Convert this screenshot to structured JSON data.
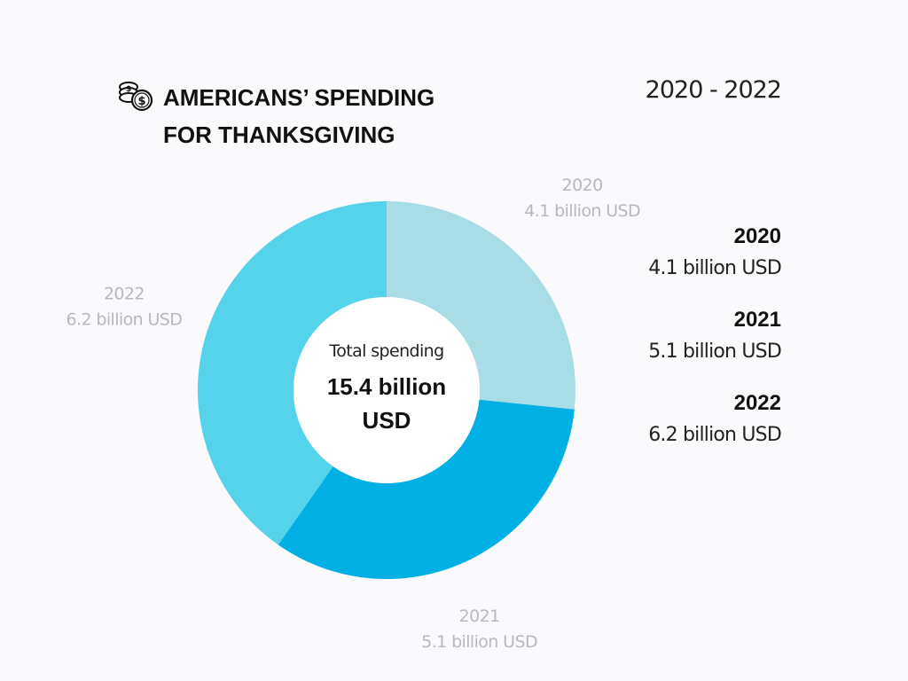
{
  "header": {
    "title_line1": "AMERICANS’ SPENDING",
    "title_line2": "FOR THANKSGIVING",
    "period": "2020 - 2022",
    "icon": "coins-icon"
  },
  "center": {
    "caption": "Total spending",
    "total_line1": "15.4 billion",
    "total_line2": "USD"
  },
  "legend": [
    {
      "year": "2020",
      "value": "4.1 billion USD"
    },
    {
      "year": "2021",
      "value": "5.1 billion USD"
    },
    {
      "year": "2022",
      "value": "6.2 billion USD"
    }
  ],
  "chart_data": {
    "type": "pie",
    "title": "AMERICANS’ SPENDING FOR THANKSGIVING",
    "subtitle": "2020 - 2022",
    "unit": "billion USD",
    "donut": true,
    "categories": [
      "2020",
      "2021",
      "2022"
    ],
    "values": [
      4.1,
      5.1,
      6.2
    ],
    "value_labels": [
      "4.1 billion USD",
      "5.1 billion USD",
      "6.2 billion USD"
    ],
    "colors": [
      "#a8dde6",
      "#00afe3",
      "#55d3ea"
    ],
    "total": 15.4,
    "legend_position": "right"
  }
}
